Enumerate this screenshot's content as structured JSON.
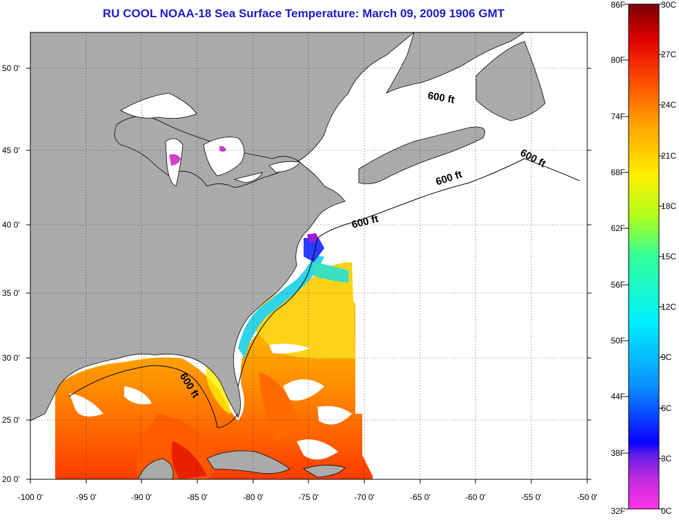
{
  "title": "RU COOL  NOAA-18  Sea Surface Temperature:  March 09, 2009 1906 GMT",
  "latitude_labels": [
    "50 0'",
    "45 0'",
    "40 0'",
    "35 0'",
    "30 0'",
    "25 0'",
    "20 0'"
  ],
  "longitude_labels": [
    "-100 0'",
    "-95 0'",
    "-90 0'",
    "-85 0'",
    "-80 0'",
    "-75 0'",
    "-70 0'",
    "-65 0'",
    "-60 0'",
    "-55 0'",
    "-50 0'"
  ],
  "colorbar": {
    "fahrenheit_labels": [
      "86F",
      "80F",
      "74F",
      "68F",
      "62F",
      "56F",
      "50F",
      "44F",
      "38F",
      "32F"
    ],
    "celsius_labels": [
      "30C",
      "27C",
      "24C",
      "21C",
      "18C",
      "15C",
      "12C",
      "9C",
      "6C",
      "3C",
      "0C"
    ],
    "range_celsius": [
      0,
      30
    ],
    "colors": [
      "#ff33e6",
      "#9a1fd6",
      "#2a1cff",
      "#0a8cff",
      "#00e8ff",
      "#33ff99",
      "#b0ff1a",
      "#ffee00",
      "#ffaa00",
      "#ff5a00",
      "#e80000",
      "#8a0000"
    ]
  },
  "contour_labels": [
    "600 ft",
    "600 ft",
    "600 ft",
    "600 ft",
    "600 ft"
  ],
  "colors": {
    "land": "#aaaaaa",
    "no_data": "#ffffff",
    "title": "#1c1cc8"
  }
}
